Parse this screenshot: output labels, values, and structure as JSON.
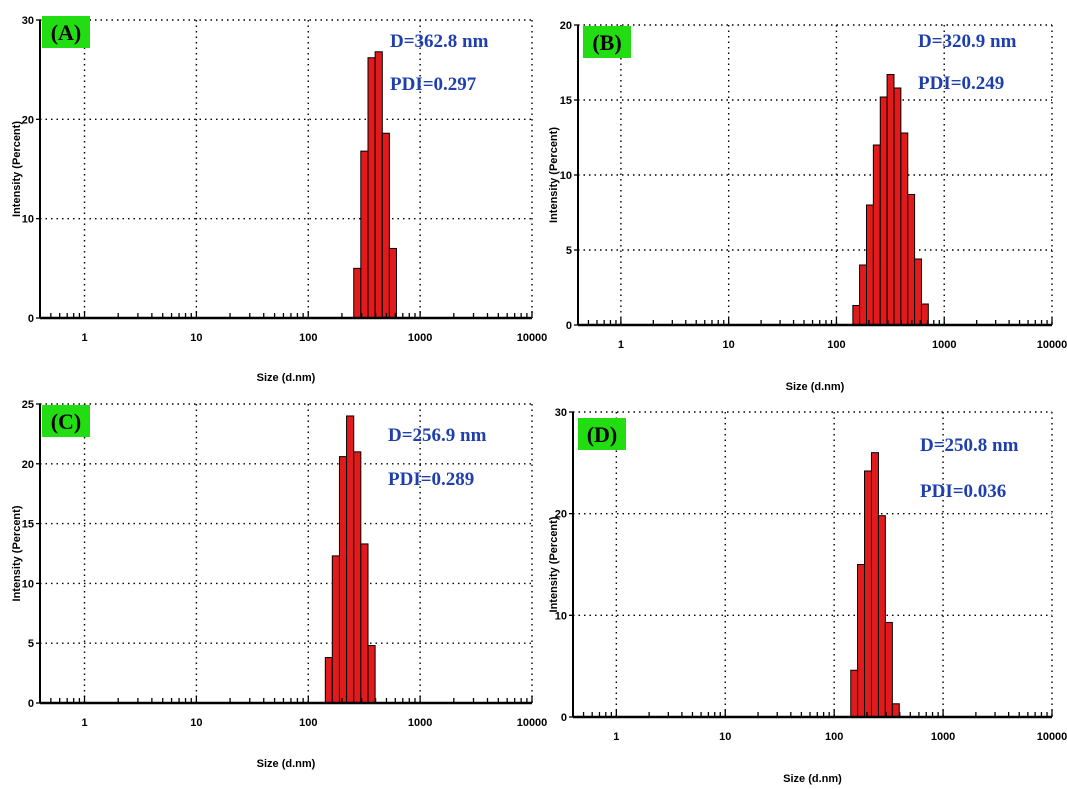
{
  "colors": {
    "bar_fill": "#e31a1c",
    "bar_stroke": "#000000",
    "annotation": "#1f3fae",
    "panel_label_bg": "#22dd11",
    "grid": "#000000"
  },
  "chart_data": [
    {
      "type": "bar",
      "panel_label": "(A)",
      "xlabel": "Size (d.nm)",
      "ylabel": "Intensity (Percent)",
      "x_scale": "log",
      "xlim": [
        0.4,
        10000
      ],
      "ylim": [
        0,
        30
      ],
      "x_ticks": [
        1,
        10,
        100,
        1000,
        10000
      ],
      "x_tick_labels": [
        "1",
        "10",
        "100",
        "1000",
        "10000"
      ],
      "y_ticks": [
        0,
        10,
        20,
        30
      ],
      "y_tick_labels": [
        "0",
        "10",
        "20",
        "30"
      ],
      "grid": true,
      "annotations": [
        "D=362.8 nm",
        "PDI=0.297"
      ],
      "bins": [
        {
          "x0": 255,
          "x1": 295,
          "value": 5
        },
        {
          "x0": 295,
          "x1": 342,
          "value": 16.8
        },
        {
          "x0": 342,
          "x1": 396,
          "value": 26.2
        },
        {
          "x0": 396,
          "x1": 459,
          "value": 26.8
        },
        {
          "x0": 459,
          "x1": 531,
          "value": 18.6
        },
        {
          "x0": 531,
          "x1": 615,
          "value": 7
        }
      ]
    },
    {
      "type": "bar",
      "panel_label": "(B)",
      "xlabel": "Size (d.nm)",
      "ylabel": "Intensity (Percent)",
      "x_scale": "log",
      "xlim": [
        0.4,
        10000
      ],
      "ylim": [
        0,
        20
      ],
      "x_ticks": [
        1,
        10,
        100,
        1000,
        10000
      ],
      "x_tick_labels": [
        "1",
        "10",
        "100",
        "1000",
        "10000"
      ],
      "y_ticks": [
        0,
        5,
        10,
        15,
        20
      ],
      "y_tick_labels": [
        "0",
        "5",
        "10",
        "15",
        "20"
      ],
      "grid": true,
      "annotations": [
        "D=320.9 nm",
        "PDI=0.249"
      ],
      "bins": [
        {
          "x0": 142,
          "x1": 164,
          "value": 1.3
        },
        {
          "x0": 164,
          "x1": 190,
          "value": 4
        },
        {
          "x0": 190,
          "x1": 220,
          "value": 8
        },
        {
          "x0": 220,
          "x1": 255,
          "value": 12
        },
        {
          "x0": 255,
          "x1": 295,
          "value": 15.2
        },
        {
          "x0": 295,
          "x1": 342,
          "value": 16.7
        },
        {
          "x0": 342,
          "x1": 396,
          "value": 15.8
        },
        {
          "x0": 396,
          "x1": 459,
          "value": 12.8
        },
        {
          "x0": 459,
          "x1": 531,
          "value": 8.7
        },
        {
          "x0": 531,
          "x1": 615,
          "value": 4.4
        },
        {
          "x0": 615,
          "x1": 712,
          "value": 1.4
        }
      ]
    },
    {
      "type": "bar",
      "panel_label": "(C)",
      "xlabel": "Size (d.nm)",
      "ylabel": "Intensity (Percent)",
      "x_scale": "log",
      "xlim": [
        0.4,
        10000
      ],
      "ylim": [
        0,
        25
      ],
      "x_ticks": [
        1,
        10,
        100,
        1000,
        10000
      ],
      "x_tick_labels": [
        "1",
        "10",
        "100",
        "1000",
        "10000"
      ],
      "y_ticks": [
        0,
        5,
        10,
        15,
        20,
        25
      ],
      "y_tick_labels": [
        "0",
        "5",
        "10",
        "15",
        "20",
        "25"
      ],
      "grid": true,
      "annotations": [
        "D=256.9 nm",
        "PDI=0.289"
      ],
      "bins": [
        {
          "x0": 142,
          "x1": 164,
          "value": 3.8
        },
        {
          "x0": 164,
          "x1": 190,
          "value": 12.3
        },
        {
          "x0": 190,
          "x1": 220,
          "value": 20.6
        },
        {
          "x0": 220,
          "x1": 255,
          "value": 24
        },
        {
          "x0": 255,
          "x1": 295,
          "value": 21
        },
        {
          "x0": 295,
          "x1": 342,
          "value": 13.3
        },
        {
          "x0": 342,
          "x1": 396,
          "value": 4.8
        }
      ]
    },
    {
      "type": "bar",
      "panel_label": "(D)",
      "xlabel": "Size (d.nm)",
      "ylabel": "Intensity (Percent)",
      "x_scale": "log",
      "xlim": [
        0.4,
        10000
      ],
      "ylim": [
        0,
        30
      ],
      "x_ticks": [
        1,
        10,
        100,
        1000,
        10000
      ],
      "x_tick_labels": [
        "1",
        "10",
        "100",
        "1000",
        "10000"
      ],
      "y_ticks": [
        0,
        10,
        20,
        30
      ],
      "y_tick_labels": [
        "0",
        "10",
        "20",
        "30"
      ],
      "grid": true,
      "annotations": [
        "D=250.8 nm",
        "PDI=0.036"
      ],
      "bins": [
        {
          "x0": 142,
          "x1": 164,
          "value": 4.6
        },
        {
          "x0": 164,
          "x1": 190,
          "value": 15
        },
        {
          "x0": 190,
          "x1": 220,
          "value": 24.2
        },
        {
          "x0": 220,
          "x1": 255,
          "value": 26
        },
        {
          "x0": 255,
          "x1": 295,
          "value": 19.8
        },
        {
          "x0": 295,
          "x1": 342,
          "value": 9.3
        },
        {
          "x0": 342,
          "x1": 396,
          "value": 1.3
        }
      ]
    }
  ]
}
